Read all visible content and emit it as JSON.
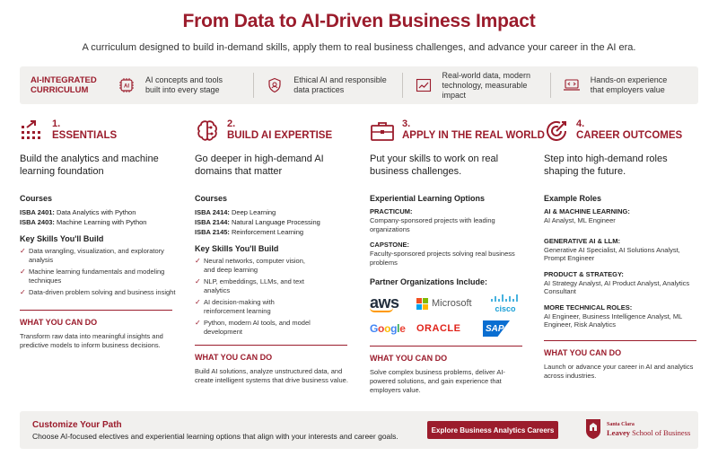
{
  "header": {
    "title": "From Data to AI-Driven Business Impact",
    "subtitle": "A curriculum designed to build in-demand skills, apply them to real business challenges, and advance your career in the AI era."
  },
  "bar": {
    "label_line1": "AI-INTEGRATED",
    "label_line2": "CURRICULUM",
    "items": [
      {
        "icon": "ai-chip-icon",
        "line1": "AI concepts and tools",
        "line2": "built into every stage"
      },
      {
        "icon": "shield-icon",
        "line1": "Ethical AI and responsible",
        "line2": "data practices"
      },
      {
        "icon": "chart-icon",
        "line1": "Real-world data, modern",
        "line2": "technology, measurable impact"
      },
      {
        "icon": "laptop-icon",
        "line1": "Hands-on experience",
        "line2": "that employers value"
      }
    ]
  },
  "columns": {
    "c1": {
      "num": "1.",
      "name": "ESSENTIALS",
      "desc": "Build the analytics and machine learning foundation",
      "courses_h": "Courses",
      "courses": [
        {
          "code": "ISBA 2401:",
          "title": "Data Analytics with Python"
        },
        {
          "code": "ISBA 2403:",
          "title": "Machine Learning with Python"
        }
      ],
      "skills_h": "Key Skills You'll Build",
      "skills": [
        "Data wrangling, visualization, and exploratory analysis",
        "Machine learning fundamentals and modeling techniques",
        "Data-driven problem solving and business insight"
      ],
      "wycd_h": "WHAT YOU CAN DO",
      "wycd": "Transform raw data into meaningful insights and predictive models to inform business decisions."
    },
    "c2": {
      "num": "2.",
      "name": "BUILD AI EXPERTISE",
      "desc": "Go deeper in high-demand AI domains that matter",
      "courses_h": "Courses",
      "courses": [
        {
          "code": "ISBA 2414:",
          "title": "Deep Learning"
        },
        {
          "code": "ISBA 2144:",
          "title": "Natural Language Processing"
        },
        {
          "code": "ISBA 2145:",
          "title": "Reinforcement Learning"
        }
      ],
      "skills_h": "Key Skills You'll Build",
      "skills": [
        "Neural networks, computer vision, and deep learning",
        "NLP, embeddings, LLMs, and text analytics",
        "AI decision-making with reinforcement learning",
        "Python, modern AI tools, and model development"
      ],
      "wycd_h": "WHAT YOU CAN DO",
      "wycd": "Build AI solutions, analyze unstructured data, and create intelligent systems that drive business value."
    },
    "c3": {
      "num": "3.",
      "name": "APPLY IN THE REAL WORLD",
      "desc": "Put your skills to work on real business challenges.",
      "exp_h": "Experiential Learning Options",
      "options": [
        {
          "label": "PRACTICUM:",
          "text": "Company-sponsored projects with leading organizations"
        },
        {
          "label": "CAPSTONE:",
          "text": "Faculty-sponsored projects solving real business problems"
        }
      ],
      "partners_h": "Partner Organizations Include:",
      "partners": [
        "aws",
        "Microsoft",
        "cisco",
        "Google",
        "ORACLE",
        "SAP"
      ],
      "wycd_h": "WHAT YOU CAN DO",
      "wycd": "Solve complex business problems, deliver AI-powered solutions, and gain experience that employers value."
    },
    "c4": {
      "num": "4.",
      "name": "CAREER OUTCOMES",
      "desc": "Step into high-demand roles shaping the future.",
      "roles_h": "Example Roles",
      "roles": [
        {
          "label": "AI & MACHINE LEARNING:",
          "text": "AI Analyst, ML Engineer"
        },
        {
          "label": "GENERATIVE AI & LLM:",
          "text": "Generative AI Specialist, AI Solutions Analyst, Prompt Engineer"
        },
        {
          "label": "PRODUCT & STRATEGY:",
          "text": "AI Strategy Analyst, AI Product Analyst, Analytics Consultant"
        },
        {
          "label": "MORE TECHNICAL ROLES:",
          "text": "AI Engineer, Business Intelligence Analyst, ML Engineer, Risk Analytics"
        }
      ],
      "wycd_h": "WHAT YOU CAN DO",
      "wycd": "Launch or advance your career in AI and analytics across industries."
    }
  },
  "footer": {
    "title": "Customize Your Path",
    "text": "Choose AI-focused electives and experiential learning options that align with your interests and career goals.",
    "button": "Explore Business Analytics Careers",
    "logo_top": "Santa Clara",
    "logo_leavey": "Leavey",
    "logo_school": " School of Business"
  },
  "colors": {
    "accent": "#9b1c2c",
    "panel": "#f1f0ee"
  }
}
